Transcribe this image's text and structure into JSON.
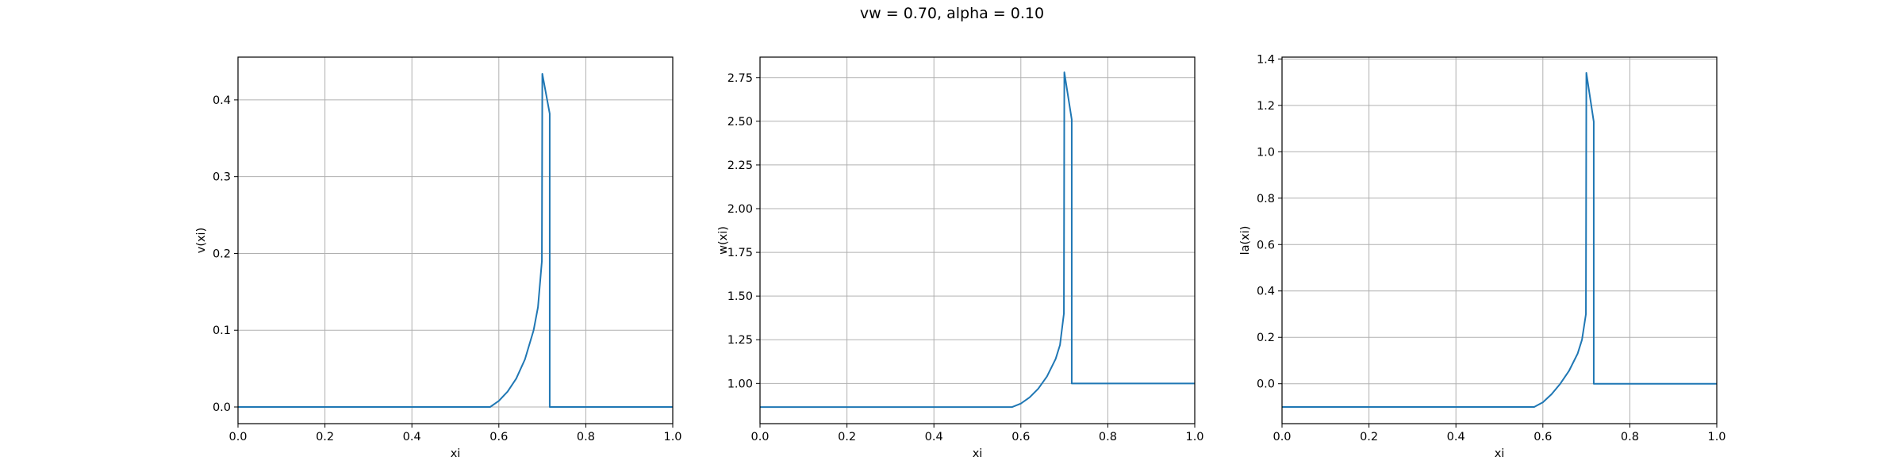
{
  "figure": {
    "suptitle": "vw = 0.70, alpha = 0.10"
  },
  "colors": {
    "line": "#1f77b4",
    "grid": "#b0b0b0",
    "axes": "#000000"
  },
  "chart_data": [
    {
      "type": "line",
      "xlabel": "xi",
      "ylabel": "v(xi)",
      "xlim": [
        0.0,
        1.0
      ],
      "ylim": [
        -0.0217,
        0.4557
      ],
      "grid": true,
      "xticks": [
        0.0,
        0.2,
        0.4,
        0.6,
        0.8,
        1.0
      ],
      "xtick_labels": [
        "0.0",
        "0.2",
        "0.4",
        "0.6",
        "0.8",
        "1.0"
      ],
      "yticks": [
        0.0,
        0.1,
        0.2,
        0.3,
        0.4
      ],
      "ytick_labels": [
        "0.0",
        "0.1",
        "0.2",
        "0.3",
        "0.4"
      ],
      "series": [
        {
          "x": [
            0.0,
            0.58,
            0.6,
            0.62,
            0.64,
            0.66,
            0.68,
            0.69,
            0.699,
            0.7,
            0.717,
            0.717,
            1.0
          ],
          "y": [
            0.0,
            0.0,
            0.008,
            0.02,
            0.037,
            0.062,
            0.1,
            0.13,
            0.19,
            0.434,
            0.382,
            0.0,
            0.0
          ]
        }
      ]
    },
    {
      "type": "line",
      "xlabel": "xi",
      "ylabel": "w(xi)",
      "xlim": [
        0.0,
        1.0
      ],
      "ylim": [
        0.77,
        2.867
      ],
      "grid": true,
      "xticks": [
        0.0,
        0.2,
        0.4,
        0.6,
        0.8,
        1.0
      ],
      "xtick_labels": [
        "0.0",
        "0.2",
        "0.4",
        "0.6",
        "0.8",
        "1.0"
      ],
      "yticks": [
        1.0,
        1.25,
        1.5,
        1.75,
        2.0,
        2.25,
        2.5,
        2.75
      ],
      "ytick_labels": [
        "1.00",
        "1.25",
        "1.50",
        "1.75",
        "2.00",
        "2.25",
        "2.50",
        "2.75"
      ],
      "series": [
        {
          "x": [
            0.0,
            0.58,
            0.6,
            0.62,
            0.64,
            0.66,
            0.68,
            0.69,
            0.699,
            0.7,
            0.717,
            0.717,
            1.0
          ],
          "y": [
            0.865,
            0.865,
            0.885,
            0.92,
            0.97,
            1.04,
            1.14,
            1.22,
            1.4,
            2.78,
            2.51,
            1.0,
            1.0
          ]
        }
      ]
    },
    {
      "type": "line",
      "xlabel": "xi",
      "ylabel": "la(xi)",
      "xlim": [
        0.0,
        1.0
      ],
      "ylim": [
        -0.172,
        1.408
      ],
      "grid": true,
      "xticks": [
        0.0,
        0.2,
        0.4,
        0.6,
        0.8,
        1.0
      ],
      "xtick_labels": [
        "0.0",
        "0.2",
        "0.4",
        "0.6",
        "0.8",
        "1.0"
      ],
      "yticks": [
        0.0,
        0.2,
        0.4,
        0.6,
        0.8,
        1.0,
        1.2,
        1.4
      ],
      "ytick_labels": [
        "0.0",
        "0.2",
        "0.4",
        "0.6",
        "0.8",
        "1.0",
        "1.2",
        "1.4"
      ],
      "series": [
        {
          "x": [
            0.0,
            0.58,
            0.6,
            0.62,
            0.64,
            0.66,
            0.68,
            0.69,
            0.699,
            0.7,
            0.717,
            0.717,
            1.0
          ],
          "y": [
            -0.1,
            -0.1,
            -0.08,
            -0.045,
            0.0,
            0.055,
            0.13,
            0.19,
            0.3,
            1.34,
            1.13,
            0.0,
            0.0
          ]
        }
      ]
    }
  ]
}
